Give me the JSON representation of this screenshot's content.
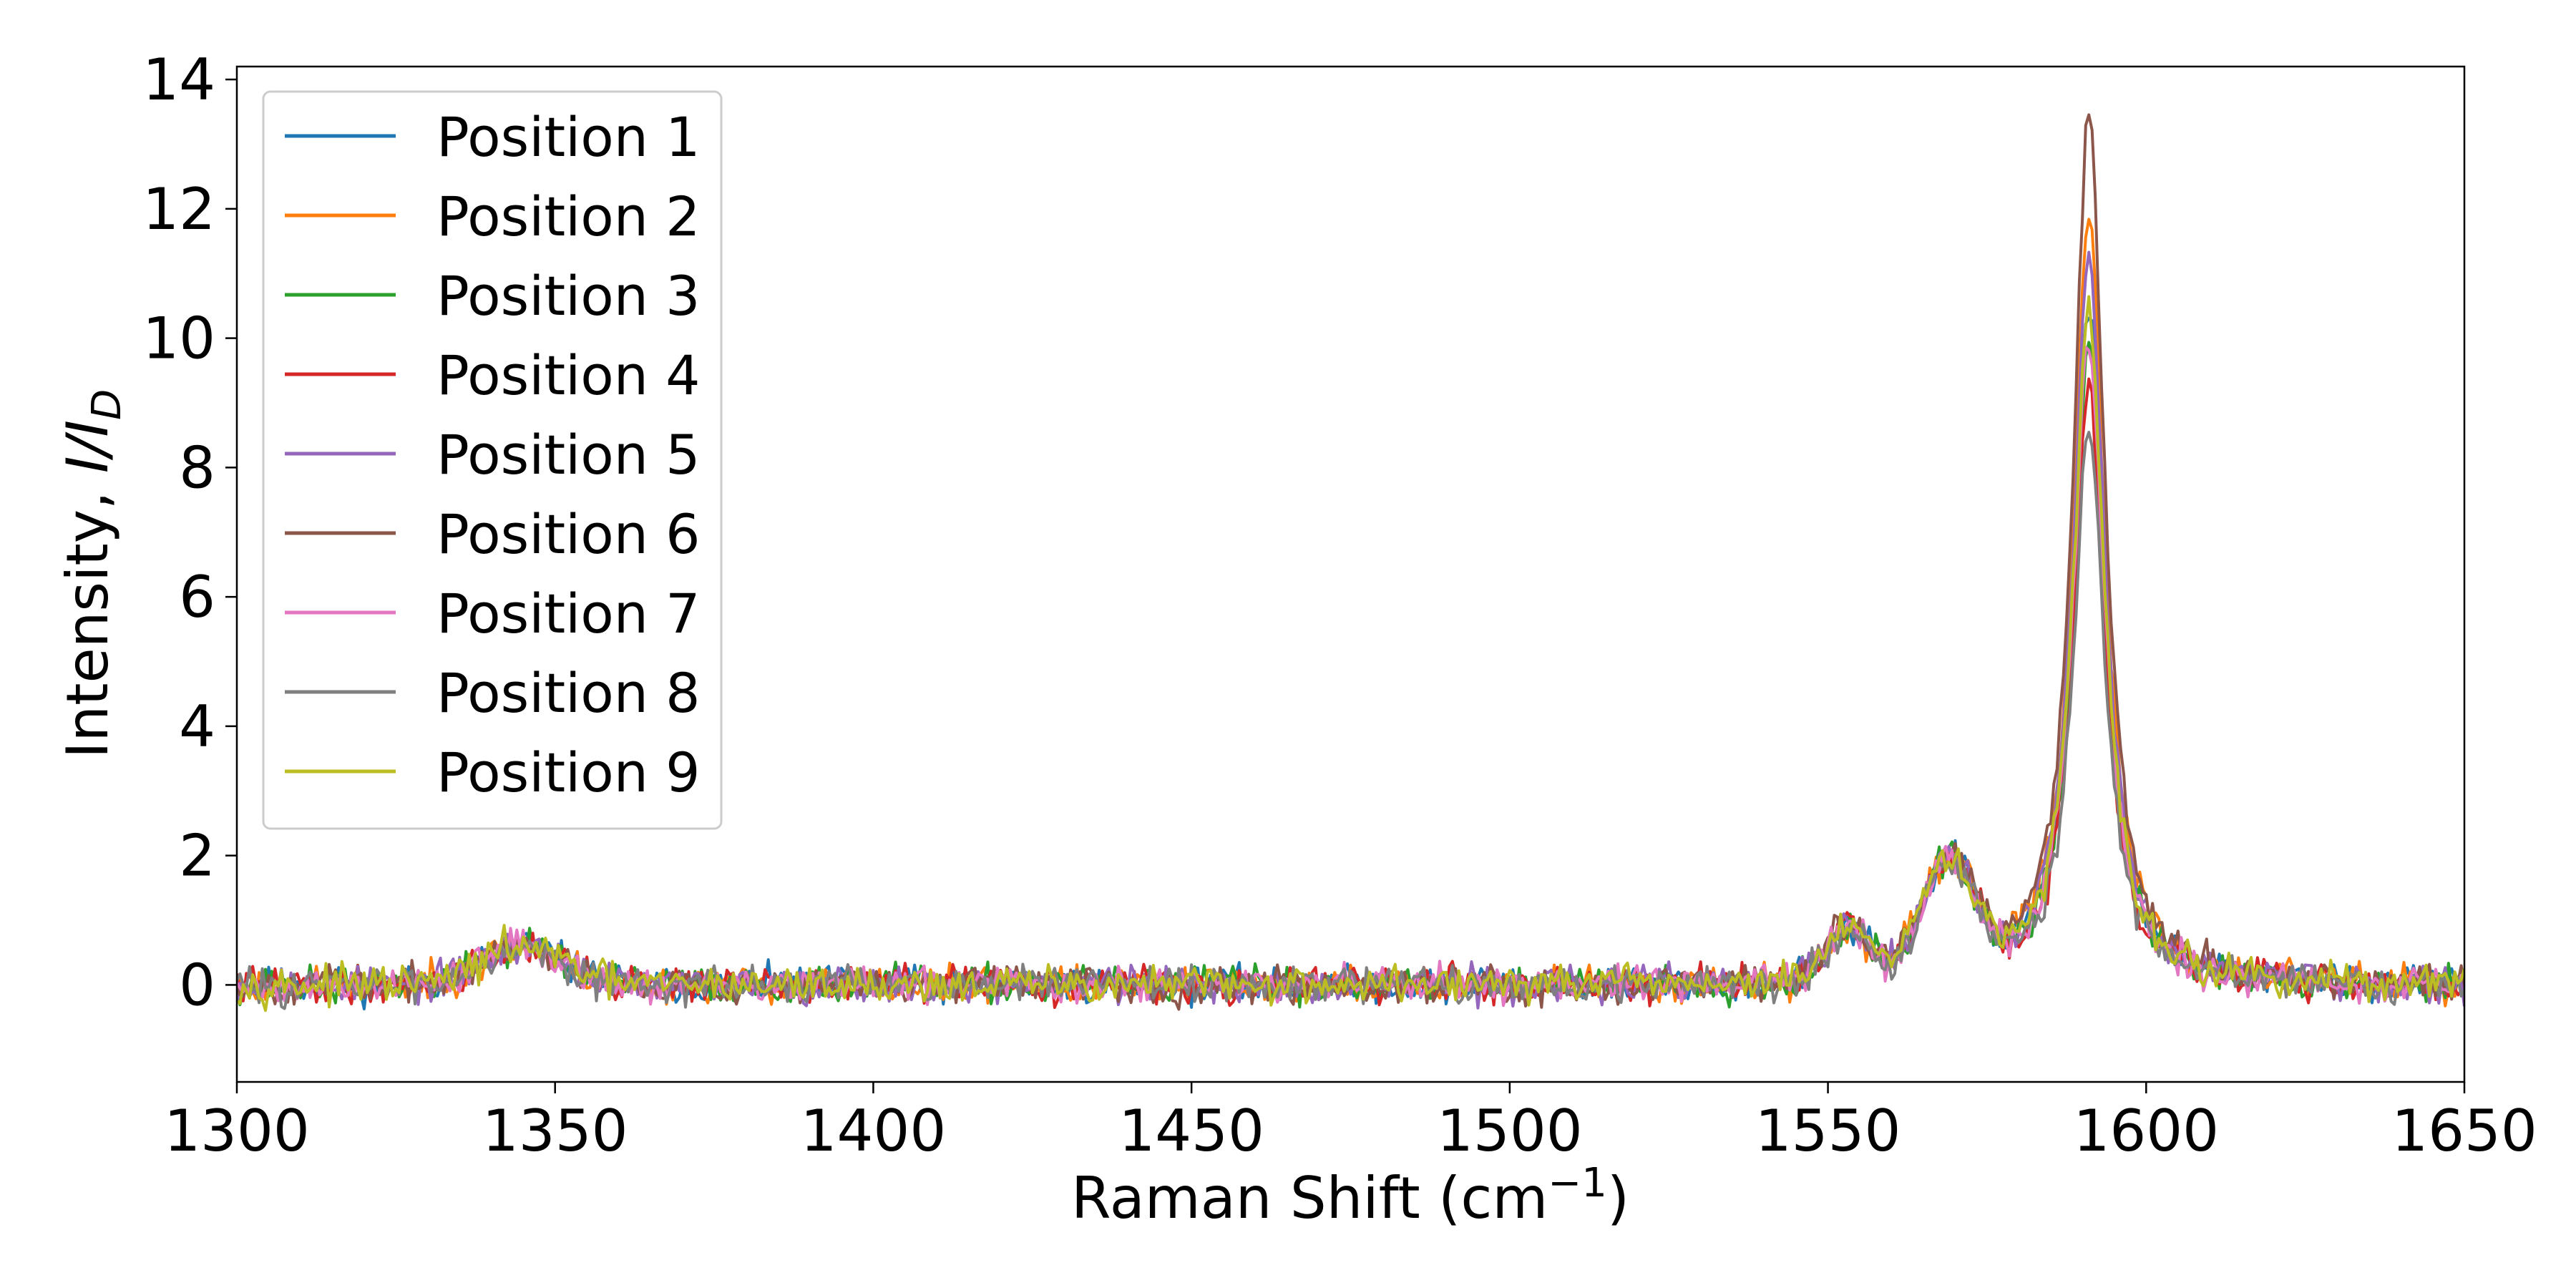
{
  "chart_data": {
    "type": "line",
    "xlabel": "Raman Shift (cm",
    "xlabel_sup": "−1",
    "xlabel_tail": ")",
    "ylabel": "Intensity, ",
    "ylabel_italic": "I/I",
    "ylabel_sub": "D",
    "xlim": [
      1300,
      1650
    ],
    "ylim": [
      -1.5,
      14.2
    ],
    "xticks": [
      1300,
      1350,
      1400,
      1450,
      1500,
      1550,
      1600,
      1650
    ],
    "yticks": [
      0,
      2,
      4,
      6,
      8,
      10,
      12,
      14
    ],
    "grid": false,
    "legend_position": "top-left",
    "x_start": 1300,
    "x_end": 1650,
    "x_step": 0.5,
    "baseline_components": [
      {
        "center": 1345,
        "height": 0.6,
        "width": 9
      },
      {
        "center": 1569,
        "height": 1.8,
        "width": 6
      },
      {
        "center": 1553,
        "height": 0.8,
        "width": 5
      }
    ],
    "g_band_center": 1591,
    "g_band_width": 6.0,
    "noise_amplitude": 0.17,
    "series": [
      {
        "name": "Position 1",
        "color": "#1f77b4",
        "g_band_height": 10.6,
        "seed": 11
      },
      {
        "name": "Position 2",
        "color": "#ff7f0e",
        "g_band_height": 12.0,
        "seed": 23
      },
      {
        "name": "Position 3",
        "color": "#2ca02c",
        "g_band_height": 9.9,
        "seed": 37
      },
      {
        "name": "Position 4",
        "color": "#d62728",
        "g_band_height": 9.2,
        "seed": 41
      },
      {
        "name": "Position 5",
        "color": "#9467bd",
        "g_band_height": 11.3,
        "seed": 53
      },
      {
        "name": "Position 6",
        "color": "#8c564b",
        "g_band_height": 13.5,
        "seed": 67
      },
      {
        "name": "Position 7",
        "color": "#e377c2",
        "g_band_height": 10.0,
        "seed": 79
      },
      {
        "name": "Position 8",
        "color": "#7f7f7f",
        "g_band_height": 8.6,
        "seed": 83
      },
      {
        "name": "Position 9",
        "color": "#bcbd22",
        "g_band_height": 10.5,
        "seed": 97
      }
    ]
  }
}
